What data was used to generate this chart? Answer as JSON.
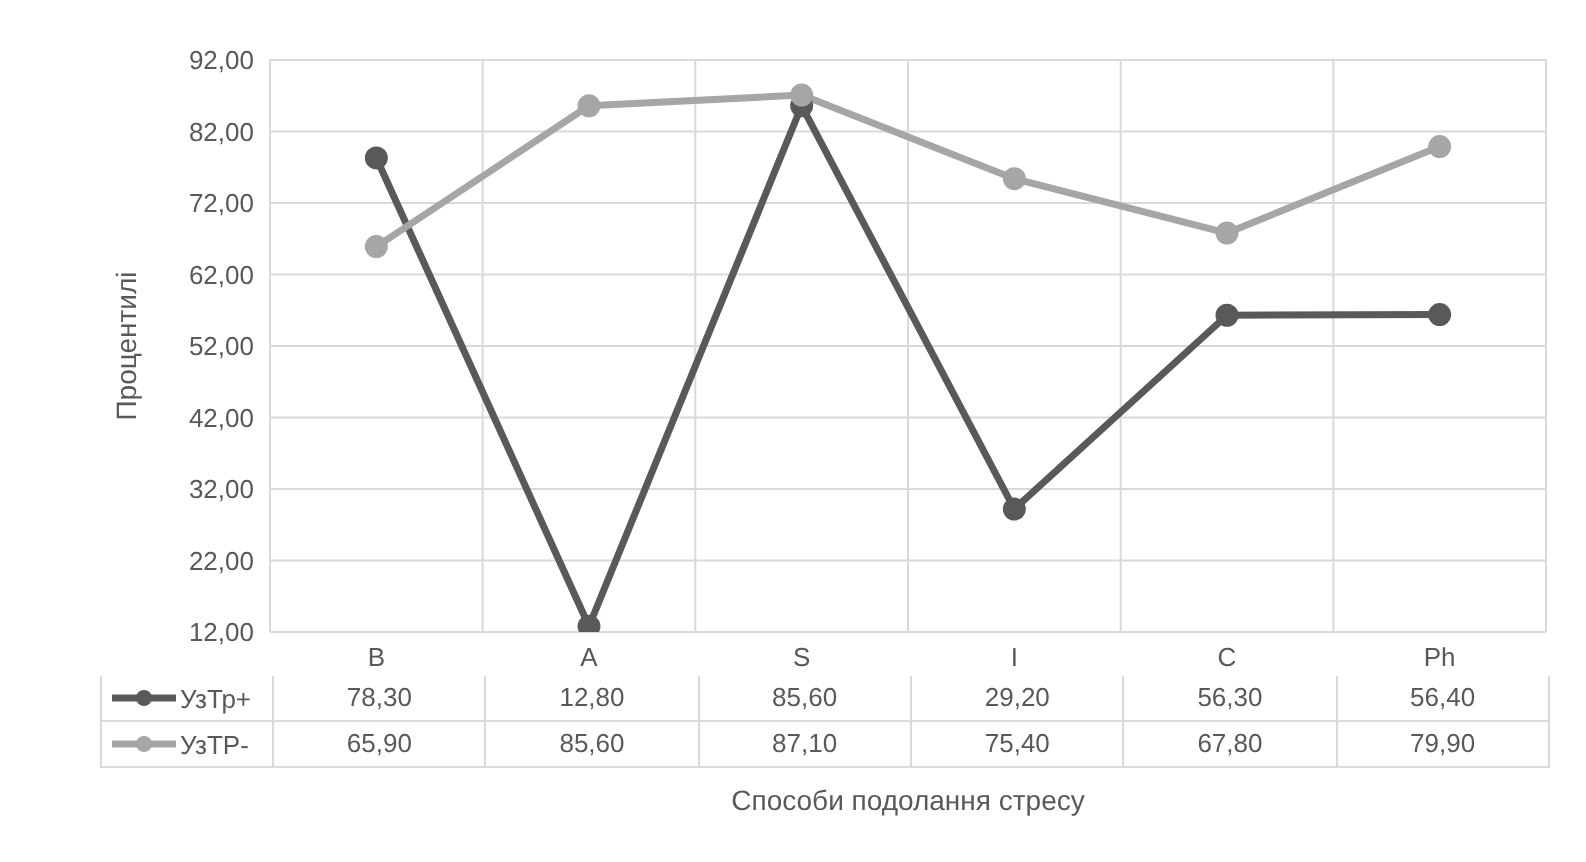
{
  "chart_data": {
    "type": "line",
    "xlabel": "Способи подолання стресу",
    "ylabel": "Процентилі",
    "categories": [
      "B",
      "A",
      "S",
      "I",
      "C",
      "Ph"
    ],
    "series": [
      {
        "name": "УзТр+",
        "color": "#595959",
        "values": [
          78.3,
          12.8,
          85.6,
          29.2,
          56.3,
          56.4
        ],
        "value_labels": [
          "78,30",
          "12,80",
          "85,60",
          "29,20",
          "56,30",
          "56,40"
        ]
      },
      {
        "name": "УзТР-",
        "color": "#a6a6a6",
        "values": [
          65.9,
          85.6,
          87.1,
          75.4,
          67.8,
          79.9
        ],
        "value_labels": [
          "65,90",
          "85,60",
          "87,10",
          "75,40",
          "67,80",
          "79,90"
        ]
      }
    ],
    "ylim": [
      12,
      92
    ],
    "yticks": [
      {
        "value": 12,
        "label": "12,00"
      },
      {
        "value": 22,
        "label": "22,00"
      },
      {
        "value": 32,
        "label": "32,00"
      },
      {
        "value": 42,
        "label": "42,00"
      },
      {
        "value": 52,
        "label": "52,00"
      },
      {
        "value": 62,
        "label": "62,00"
      },
      {
        "value": 72,
        "label": "72,00"
      },
      {
        "value": 82,
        "label": "82,00"
      },
      {
        "value": 92,
        "label": "92,00"
      }
    ],
    "grid": true,
    "legend": "bottom",
    "marker": "circle",
    "line_style": "solid"
  }
}
